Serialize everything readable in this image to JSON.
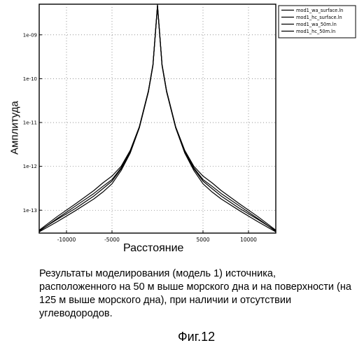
{
  "chart_data": {
    "type": "line",
    "title": "",
    "xlabel": "Расстояние",
    "ylabel": "Амплитуда",
    "x_scale": "linear",
    "y_scale": "log",
    "xlim": [
      -13000,
      13000
    ],
    "ylim": [
      3e-14,
      5e-09
    ],
    "x_ticks": [
      -10000,
      -5000,
      5000,
      10000
    ],
    "x_tick_labels": [
      "-10000",
      "-5000",
      "5000",
      "10000"
    ],
    "y_ticks": [
      1e-09,
      1e-10,
      1e-11,
      1e-12,
      1e-13
    ],
    "y_tick_labels": [
      "1e-09",
      "1e-10",
      "1e-11",
      "1e-12",
      "1e-13"
    ],
    "grid": true,
    "legend_position": "top-right",
    "series": [
      {
        "name": "mod1_wa_surface.ln",
        "x": [
          -13000,
          -11000,
          -9000,
          -7000,
          -6000,
          -5000,
          -4000,
          -3000,
          -2000,
          -1000,
          -500,
          0,
          500,
          1000,
          2000,
          3000,
          4000,
          5000,
          6000,
          7000,
          9000,
          11000,
          13000
        ],
        "y": [
          3.2e-14,
          5.5e-14,
          9.8e-14,
          1.8e-13,
          2.6e-13,
          4e-13,
          8e-13,
          2e-12,
          7.5e-12,
          5e-11,
          2e-10,
          4.5e-09,
          2e-10,
          5e-11,
          7.5e-12,
          2e-12,
          8e-13,
          4e-13,
          2.6e-13,
          1.8e-13,
          9.8e-14,
          5.5e-14,
          3.2e-14
        ]
      },
      {
        "name": "mod1_hc_surface.ln",
        "x": [
          -13000,
          -11000,
          -9000,
          -7000,
          -6000,
          -5000,
          -4000,
          -3000,
          -2000,
          -1000,
          -500,
          0,
          500,
          1000,
          2000,
          3000,
          4000,
          5000,
          6000,
          7000,
          9000,
          11000,
          13000
        ],
        "y": [
          3.4e-14,
          6.2e-14,
          1.1e-13,
          2.1e-13,
          3.1e-13,
          4.6e-13,
          8.8e-13,
          2.1e-12,
          7.6e-12,
          5e-11,
          2e-10,
          4.5e-09,
          2e-10,
          5e-11,
          7.6e-12,
          2.1e-12,
          8.8e-13,
          4.6e-13,
          3.1e-13,
          2.1e-13,
          1.1e-13,
          6.2e-14,
          3.4e-14
        ]
      },
      {
        "name": "mod1_wa_50m.ln",
        "x": [
          -13000,
          -11000,
          -9000,
          -7000,
          -6000,
          -5000,
          -4000,
          -3000,
          -2000,
          -1000,
          -500,
          0,
          500,
          1000,
          2000,
          3000,
          4000,
          5000,
          6000,
          7000,
          9000,
          11000,
          13000
        ],
        "y": [
          3.3e-14,
          6.5e-14,
          1.25e-13,
          2.4e-13,
          3.5e-13,
          5e-13,
          9.2e-13,
          2.2e-12,
          7.8e-12,
          5.2e-11,
          2.1e-10,
          4.8e-09,
          2.1e-10,
          5.2e-11,
          7.8e-12,
          2.2e-12,
          9.2e-13,
          5e-13,
          3.5e-13,
          2.4e-13,
          1.25e-13,
          6.5e-14,
          3.3e-14
        ]
      },
      {
        "name": "mod1_hc_50m.ln",
        "x": [
          -13000,
          -11000,
          -9000,
          -7000,
          -6000,
          -5000,
          -4000,
          -3000,
          -2000,
          -1000,
          -500,
          0,
          500,
          1000,
          2000,
          3000,
          4000,
          5000,
          6000,
          7000,
          9000,
          11000,
          13000
        ],
        "y": [
          3.5e-14,
          7.2e-14,
          1.4e-13,
          2.8e-13,
          4.2e-13,
          6e-13,
          1e-12,
          2.3e-12,
          8e-12,
          5.3e-11,
          2.1e-10,
          4.8e-09,
          2.1e-10,
          5.3e-11,
          8e-12,
          2.3e-12,
          1e-12,
          6e-13,
          4.2e-13,
          2.8e-13,
          1.4e-13,
          7.2e-14,
          3.5e-14
        ]
      }
    ]
  },
  "caption": "Результаты моделирования (модель 1) источника, расположенного на 50 м выше морского дна и на поверхности (на 125 м выше морского дна), при наличии и отсутствии углеводородов.",
  "figure_label": "Фиг.12"
}
